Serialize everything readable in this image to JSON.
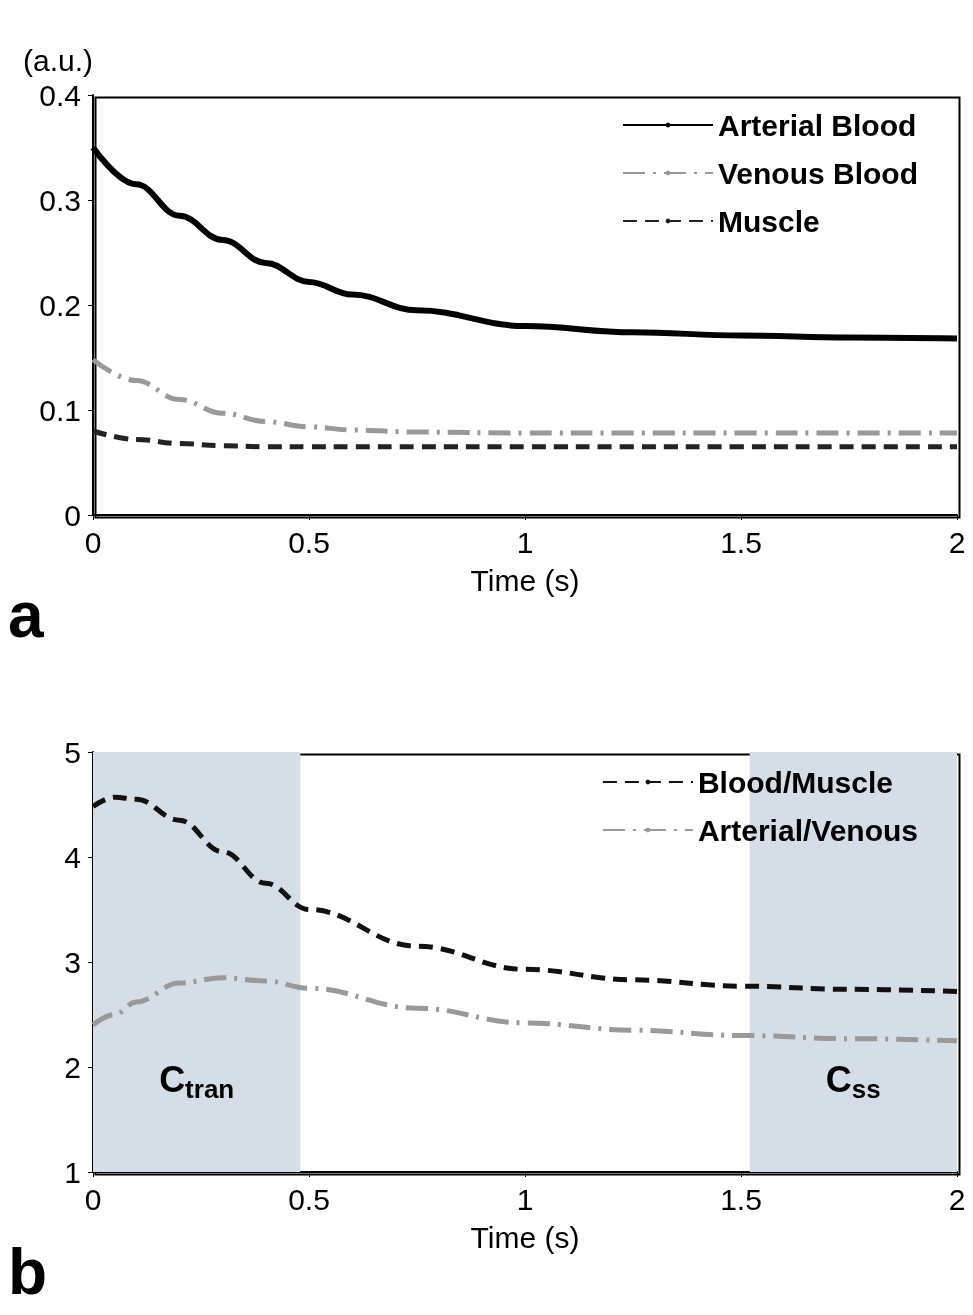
{
  "chart_data": [
    {
      "type": "line",
      "ylabel": "(a.u.)",
      "xlabel": "Time (s)",
      "annotations": [
        "a"
      ],
      "x": [
        0,
        0.1,
        0.2,
        0.3,
        0.4,
        0.5,
        0.6,
        0.75,
        1,
        1.25,
        1.5,
        1.75,
        2
      ],
      "series": [
        {
          "name": "Arterial Blood",
          "color": "#000000",
          "line_style": "solid",
          "values": [
            0.35,
            0.315,
            0.285,
            0.262,
            0.24,
            0.222,
            0.21,
            0.195,
            0.18,
            0.174,
            0.171,
            0.169,
            0.168
          ]
        },
        {
          "name": "Venous Blood",
          "color": "#999999",
          "line_style": "dashdot",
          "values": [
            0.148,
            0.128,
            0.11,
            0.097,
            0.089,
            0.084,
            0.081,
            0.079,
            0.078,
            0.078,
            0.078,
            0.078,
            0.078
          ]
        },
        {
          "name": "Muscle",
          "color": "#222222",
          "line_style": "dashed",
          "values": [
            0.08,
            0.072,
            0.068,
            0.066,
            0.065,
            0.065,
            0.065,
            0.065,
            0.065,
            0.065,
            0.065,
            0.065,
            0.065
          ]
        }
      ],
      "xlim": [
        0,
        2
      ],
      "xticks": [
        0,
        0.5,
        1,
        1.5,
        2
      ],
      "ylim": [
        0,
        0.4
      ],
      "yticks": [
        0,
        0.1,
        0.2,
        0.3,
        0.4
      ],
      "grid": false,
      "legend": "top right",
      "marker": "none"
    },
    {
      "type": "line",
      "xlabel": "Time (s)",
      "annotations": [
        "b"
      ],
      "x": [
        0,
        0.05,
        0.1,
        0.2,
        0.3,
        0.4,
        0.5,
        0.75,
        1,
        1.25,
        1.5,
        1.75,
        2
      ],
      "series": [
        {
          "name": "Blood/Muscle",
          "color": "#111111",
          "line_style": "dashed",
          "values": [
            4.48,
            4.57,
            4.55,
            4.35,
            4.05,
            3.75,
            3.5,
            3.15,
            2.93,
            2.83,
            2.77,
            2.74,
            2.72
          ]
        },
        {
          "name": "Arterial/Venous",
          "color": "#999999",
          "line_style": "dashdot",
          "values": [
            2.4,
            2.5,
            2.62,
            2.8,
            2.85,
            2.82,
            2.75,
            2.56,
            2.42,
            2.35,
            2.3,
            2.27,
            2.25
          ]
        }
      ],
      "bands": [
        {
          "axis": "x",
          "from": 0,
          "to": 0.48,
          "label": "C$_{tran}$",
          "color": "#d5dee6"
        },
        {
          "axis": "x",
          "from": 1.52,
          "to": 2,
          "label": "C$_{ss}$",
          "color": "#d5dee6"
        }
      ],
      "xlim": [
        0,
        2
      ],
      "xticks": [
        0,
        0.5,
        1,
        1.5,
        2
      ],
      "ylim": [
        1,
        5
      ],
      "yticks": [
        1,
        2,
        3,
        4,
        5
      ],
      "grid": false,
      "legend": "top right",
      "marker": "none"
    }
  ]
}
